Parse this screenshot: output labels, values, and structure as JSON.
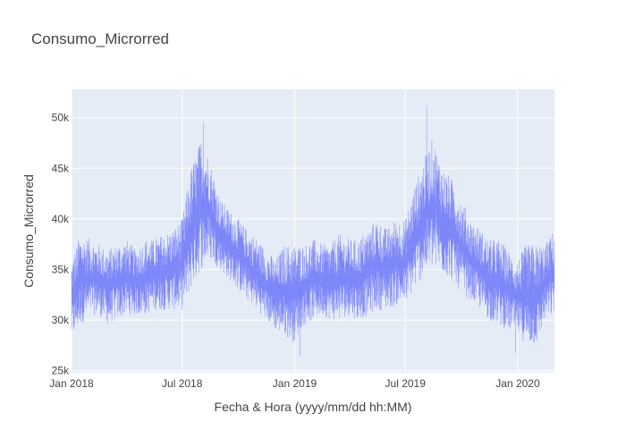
{
  "chart_data": {
    "type": "line",
    "title": "Consumo_Microrred",
    "xlabel": "Fecha & Hora (yyyy/mm/dd hh:MM)",
    "ylabel": "Consumo_Microrred",
    "x_range": [
      "2018-01-01",
      "2020-03-01"
    ],
    "ylim": [
      24800,
      52800
    ],
    "x_ticks": [
      {
        "date": "2018-01-01",
        "label": "Jan 2018"
      },
      {
        "date": "2018-07-01",
        "label": "Jul 2018"
      },
      {
        "date": "2019-01-01",
        "label": "Jan 2019"
      },
      {
        "date": "2019-07-01",
        "label": "Jul 2019"
      },
      {
        "date": "2020-01-01",
        "label": "Jan 2020"
      }
    ],
    "y_ticks": [
      {
        "value": 25000,
        "label": "25k"
      },
      {
        "value": 30000,
        "label": "30k"
      },
      {
        "value": 35000,
        "label": "35k"
      },
      {
        "value": 40000,
        "label": "40k"
      },
      {
        "value": 45000,
        "label": "45k"
      },
      {
        "value": 50000,
        "label": "50k"
      }
    ],
    "grid": true,
    "legend": "none",
    "line_color": "#636efa",
    "plot_bg": "#e5ecf6",
    "series": [
      {
        "x": [
          "2018-01-01",
          "2018-01-15",
          "2018-02-01",
          "2018-02-15",
          "2018-03-01",
          "2018-03-15",
          "2018-04-01",
          "2018-04-15",
          "2018-05-01",
          "2018-05-15",
          "2018-06-01",
          "2018-06-15",
          "2018-07-01",
          "2018-07-15",
          "2018-08-01",
          "2018-08-15",
          "2018-09-01",
          "2018-09-15",
          "2018-10-01",
          "2018-10-15",
          "2018-11-01",
          "2018-11-15",
          "2018-12-01",
          "2018-12-15",
          "2019-01-01",
          "2019-01-15",
          "2019-02-01",
          "2019-02-15",
          "2019-03-01",
          "2019-03-15",
          "2019-04-01",
          "2019-04-15",
          "2019-05-01",
          "2019-05-15",
          "2019-06-01",
          "2019-06-15",
          "2019-07-01",
          "2019-07-15",
          "2019-08-01",
          "2019-08-15",
          "2019-09-01",
          "2019-09-15",
          "2019-10-01",
          "2019-10-15",
          "2019-11-01",
          "2019-11-15",
          "2019-12-01",
          "2019-12-15",
          "2020-01-01",
          "2020-01-15",
          "2020-02-01",
          "2020-02-15",
          "2020-03-01"
        ],
        "low": [
          28000,
          29500,
          30500,
          30500,
          29500,
          30000,
          30500,
          30500,
          30500,
          31000,
          31000,
          31000,
          31000,
          33000,
          35000,
          36000,
          35000,
          34000,
          33000,
          32000,
          31000,
          30000,
          29000,
          28500,
          27800,
          29500,
          30000,
          30500,
          30000,
          30000,
          30500,
          30000,
          30500,
          31000,
          31000,
          31500,
          31500,
          33000,
          34500,
          35000,
          34500,
          34000,
          32500,
          32000,
          31000,
          30000,
          29500,
          29000,
          28500,
          27500,
          27500,
          30000,
          30500
        ],
        "high": [
          36000,
          38500,
          38000,
          37500,
          37000,
          37500,
          38000,
          37000,
          38000,
          38000,
          38500,
          39000,
          40000,
          45000,
          48000,
          46000,
          42000,
          41000,
          40000,
          39000,
          38000,
          37000,
          36000,
          37500,
          37500,
          37500,
          38000,
          37500,
          37500,
          38500,
          38000,
          38000,
          39000,
          40000,
          39000,
          40000,
          40000,
          43000,
          46000,
          48000,
          45000,
          44000,
          42000,
          40000,
          39000,
          38000,
          38000,
          37000,
          36000,
          37500,
          37500,
          37500,
          39000
        ],
        "spikes": [
          {
            "x": "2018-08-05",
            "y": 49500
          },
          {
            "x": "2019-01-10",
            "y": 26500
          },
          {
            "x": "2019-08-05",
            "y": 51200
          },
          {
            "x": "2019-12-28",
            "y": 26800
          }
        ]
      }
    ]
  }
}
